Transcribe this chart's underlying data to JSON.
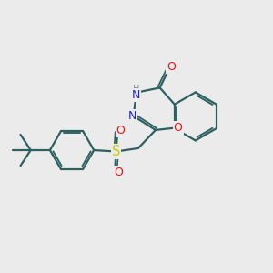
{
  "bg_color": "#ebebeb",
  "bond_color": "#2f6060",
  "bond_width": 1.6,
  "atom_colors": {
    "O": "#ee1111",
    "N": "#2222cc",
    "S": "#cccc00",
    "H": "#7a9090",
    "C": "#2f6060"
  },
  "font_size": 8.5,
  "fig_size": [
    3.0,
    3.0
  ],
  "dpi": 100
}
